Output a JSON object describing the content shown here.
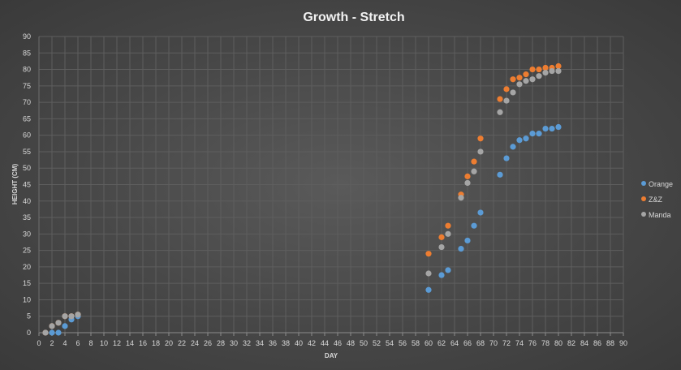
{
  "chart_data": {
    "type": "scatter",
    "title": "Growth - Stretch",
    "xlabel": "DAY",
    "ylabel": "HEIGHT (CM)",
    "xlim": [
      0,
      90
    ],
    "ylim": [
      0,
      90
    ],
    "x_tick_step": 2,
    "y_tick_step": 5,
    "grid": true,
    "legend_position": "right",
    "series": [
      {
        "name": "Orange",
        "color": "#5b9bd5",
        "points": [
          [
            1,
            0
          ],
          [
            2,
            0
          ],
          [
            3,
            0
          ],
          [
            4,
            2
          ],
          [
            5,
            4
          ],
          [
            6,
            5
          ],
          [
            60,
            13
          ],
          [
            62,
            17.5
          ],
          [
            63,
            19
          ],
          [
            65,
            25.5
          ],
          [
            66,
            28
          ],
          [
            67,
            32.5
          ],
          [
            68,
            36.5
          ],
          [
            71,
            48
          ],
          [
            72,
            53
          ],
          [
            73,
            56.5
          ],
          [
            74,
            58.5
          ],
          [
            75,
            59
          ],
          [
            76,
            60.5
          ],
          [
            77,
            60.5
          ],
          [
            78,
            62
          ],
          [
            79,
            62
          ],
          [
            80,
            62.5
          ]
        ]
      },
      {
        "name": "Z&Z",
        "color": "#ed7d31",
        "points": [
          [
            1,
            0
          ],
          [
            2,
            2
          ],
          [
            3,
            3
          ],
          [
            4,
            5
          ],
          [
            5,
            5
          ],
          [
            6,
            5.5
          ],
          [
            60,
            24
          ],
          [
            62,
            29
          ],
          [
            63,
            32.5
          ],
          [
            65,
            42
          ],
          [
            66,
            47.5
          ],
          [
            67,
            52
          ],
          [
            68,
            59
          ],
          [
            71,
            71
          ],
          [
            72,
            74
          ],
          [
            73,
            77
          ],
          [
            74,
            77.5
          ],
          [
            75,
            78.5
          ],
          [
            76,
            80
          ],
          [
            77,
            80
          ],
          [
            78,
            80.5
          ],
          [
            79,
            80.5
          ],
          [
            80,
            81
          ]
        ]
      },
      {
        "name": "Manda",
        "color": "#a5a5a5",
        "points": [
          [
            1,
            0
          ],
          [
            2,
            2
          ],
          [
            3,
            3
          ],
          [
            4,
            5
          ],
          [
            5,
            5
          ],
          [
            6,
            5.5
          ],
          [
            60,
            18
          ],
          [
            62,
            26
          ],
          [
            63,
            30
          ],
          [
            65,
            41
          ],
          [
            66,
            45.5
          ],
          [
            67,
            49
          ],
          [
            68,
            55
          ],
          [
            71,
            67
          ],
          [
            72,
            70.5
          ],
          [
            73,
            73
          ],
          [
            74,
            75.5
          ],
          [
            75,
            76.5
          ],
          [
            76,
            77
          ],
          [
            77,
            78
          ],
          [
            78,
            79
          ],
          [
            79,
            79.5
          ],
          [
            80,
            79.5
          ]
        ]
      }
    ]
  }
}
